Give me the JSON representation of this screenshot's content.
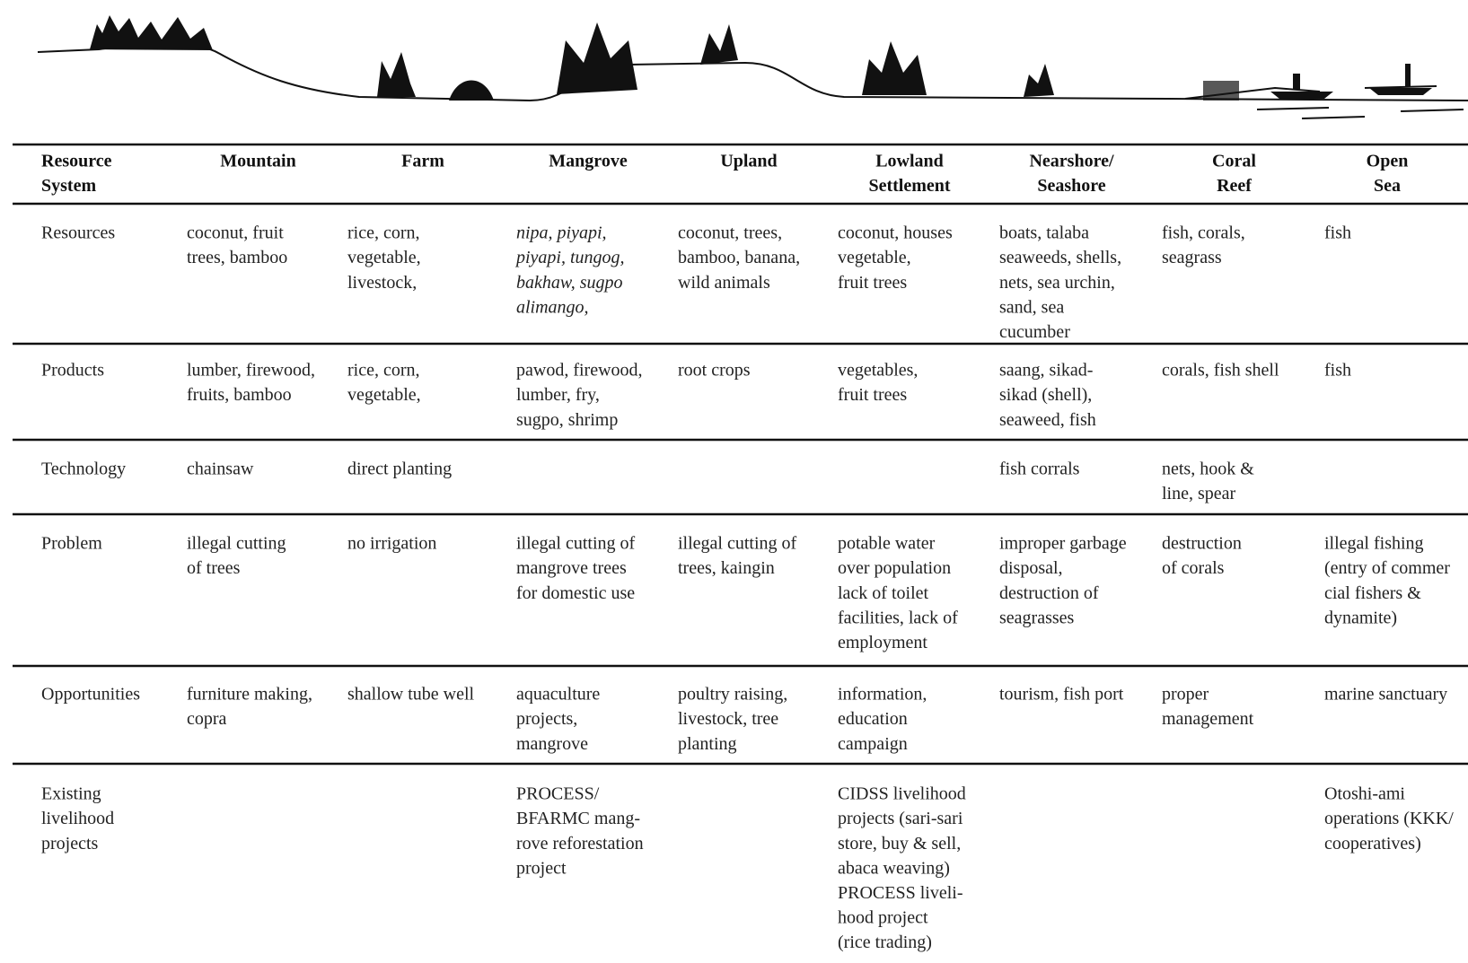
{
  "table": {
    "header": [
      [
        "Resource",
        "System"
      ],
      [
        "Mountain"
      ],
      [
        "Farm"
      ],
      [
        "Mangrove"
      ],
      [
        "Upland"
      ],
      [
        "Lowland",
        "Settlement"
      ],
      [
        "Nearshore/",
        "Seashore"
      ],
      [
        "Coral",
        "Reef"
      ],
      [
        "Open",
        "Sea"
      ]
    ],
    "rows": [
      [
        [
          "Resources"
        ],
        [
          "coconut, fruit",
          "trees, bamboo"
        ],
        [
          "rice, corn,",
          "vegetable,",
          "livestock,"
        ],
        [
          "nipa, piyapi,",
          "piyapi, tungog,",
          "bakhaw, sugpo",
          "alimango,"
        ],
        [
          "coconut, trees,",
          "bamboo, banana,",
          "wild animals"
        ],
        [
          "coconut, houses",
          "vegetable,",
          "fruit trees"
        ],
        [
          "boats, talaba",
          "seaweeds, shells,",
          "nets, sea urchin,",
          "sand, sea",
          "cucumber"
        ],
        [
          "fish, corals,",
          "seagrass"
        ],
        [
          "fish"
        ]
      ],
      [
        [
          "Products"
        ],
        [
          "lumber, firewood,",
          "fruits, bamboo"
        ],
        [
          "rice, corn,",
          "vegetable,"
        ],
        [
          "pawod, firewood,",
          "lumber, fry,",
          "sugpo, shrimp"
        ],
        [
          "root crops"
        ],
        [
          "vegetables,",
          "fruit trees"
        ],
        [
          "saang, sikad-",
          "sikad (shell),",
          "seaweed, fish"
        ],
        [
          "corals, fish shell"
        ],
        [
          "fish"
        ]
      ],
      [
        [
          "Technology"
        ],
        [
          "chainsaw"
        ],
        [
          "direct planting"
        ],
        [],
        [],
        [],
        [
          "fish corrals"
        ],
        [
          "nets, hook &",
          "line, spear"
        ],
        []
      ],
      [
        [
          "Problem"
        ],
        [
          "illegal cutting",
          "of trees"
        ],
        [
          "no irrigation"
        ],
        [
          "illegal cutting of",
          "mangrove trees",
          "for domestic use"
        ],
        [
          "illegal cutting of",
          "trees, kaingin"
        ],
        [
          "potable water",
          "over population",
          "lack of toilet",
          "facilities, lack of",
          "employment"
        ],
        [
          "improper garbage",
          "disposal,",
          "destruction of",
          "seagrasses"
        ],
        [
          "destruction",
          "of corals"
        ],
        [
          "illegal fishing",
          "(entry of commer",
          "cial fishers &",
          "dynamite)"
        ]
      ],
      [
        [
          "Opportunities"
        ],
        [
          "furniture making,",
          "copra"
        ],
        [
          "shallow tube well"
        ],
        [
          "aquaculture",
          "projects,",
          "mangrove"
        ],
        [
          "poultry raising,",
          "livestock, tree",
          "planting"
        ],
        [
          "information,",
          "education",
          "campaign"
        ],
        [
          "tourism, fish port"
        ],
        [
          "proper",
          "management"
        ],
        [
          "marine sanctuary"
        ]
      ],
      [
        [
          "Existing",
          "livelihood",
          "projects"
        ],
        [],
        [],
        [
          "PROCESS/",
          "BFARMC mang-",
          "rove reforestation",
          "project"
        ],
        [],
        [
          "CIDSS livelihood",
          "projects (sari-sari",
          "store,  buy & sell,",
          "abaca weaving)",
          "PROCESS liveli-",
          "hood project",
          "(rice trading)"
        ],
        [],
        [],
        [
          "Otoshi-ami",
          "operations (KKK/",
          "cooperatives)"
        ]
      ]
    ]
  }
}
